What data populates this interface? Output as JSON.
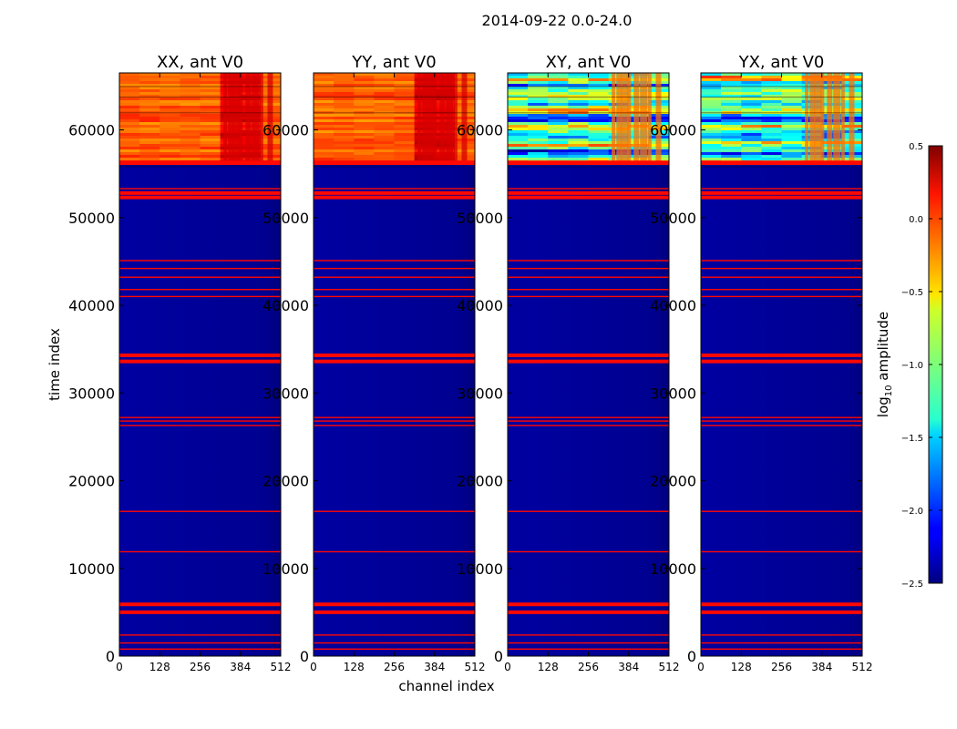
{
  "chart_data": {
    "type": "heatmap",
    "suptitle": "2014-09-22 0.0-24.0",
    "xlabel": "channel index",
    "ylabel": "time index",
    "xlim": [
      0,
      512
    ],
    "ylim": [
      0,
      66500
    ],
    "x_ticks": [
      0,
      128,
      256,
      384,
      512
    ],
    "y_ticks": [
      0,
      10000,
      20000,
      30000,
      40000,
      50000,
      60000
    ],
    "x_tick_labels": [
      "0",
      "128",
      "256",
      "384",
      "512"
    ],
    "y_tick_labels": [
      "0",
      "10000",
      "20000",
      "30000",
      "40000",
      "50000",
      "60000"
    ],
    "panels": [
      {
        "title": "XX, ant V0",
        "kind": "autocorr",
        "high_band_start": 56000,
        "low_level": -2.45,
        "band_level": -0.15
      },
      {
        "title": "YY, ant V0",
        "kind": "autocorr",
        "high_band_start": 56000,
        "low_level": -2.45,
        "band_level": -0.15
      },
      {
        "title": "XY, ant V0",
        "kind": "crosscorr",
        "high_band_start": 56000,
        "low_level": -2.45,
        "band_level": -1.2
      },
      {
        "title": "YX, ant V0",
        "kind": "crosscorr",
        "high_band_start": 56000,
        "low_level": -2.45,
        "band_level": -1.2
      }
    ],
    "flag_lines": [
      {
        "t": 800,
        "value": 0.1
      },
      {
        "t": 1500,
        "value": 0.1
      },
      {
        "t": 2400,
        "value": 0.1
      },
      {
        "t": 5000,
        "value": 0.1
      },
      {
        "t": 5900,
        "value": 0.1
      },
      {
        "t": 11900,
        "value": 0.1
      },
      {
        "t": 16500,
        "value": 0.1
      },
      {
        "t": 26300,
        "value": 0.1
      },
      {
        "t": 26800,
        "value": 0.1
      },
      {
        "t": 27200,
        "value": 0.1
      },
      {
        "t": 33600,
        "value": 0.1
      },
      {
        "t": 34300,
        "value": 0.1
      },
      {
        "t": 41000,
        "value": 0.1
      },
      {
        "t": 41800,
        "value": 0.1
      },
      {
        "t": 43200,
        "value": 0.1
      },
      {
        "t": 44200,
        "value": 0.1
      },
      {
        "t": 45100,
        "value": 0.1
      },
      {
        "t": 52300,
        "value": 0.1
      },
      {
        "t": 52800,
        "value": 0.1
      },
      {
        "t": 53300,
        "value": 0.1
      }
    ],
    "colorbar": {
      "label_main": "log",
      "label_sub": "10",
      "label_rest": " amplitude",
      "range": [
        -2.5,
        0.5
      ],
      "ticks": [
        0.5,
        0.0,
        -0.5,
        -1.0,
        -1.5,
        -2.0,
        -2.5
      ],
      "tick_labels": [
        "0.5",
        "0.0",
        "−0.5",
        "−1.0",
        "−1.5",
        "−2.0",
        "−2.5"
      ],
      "colormap": "jet"
    }
  }
}
